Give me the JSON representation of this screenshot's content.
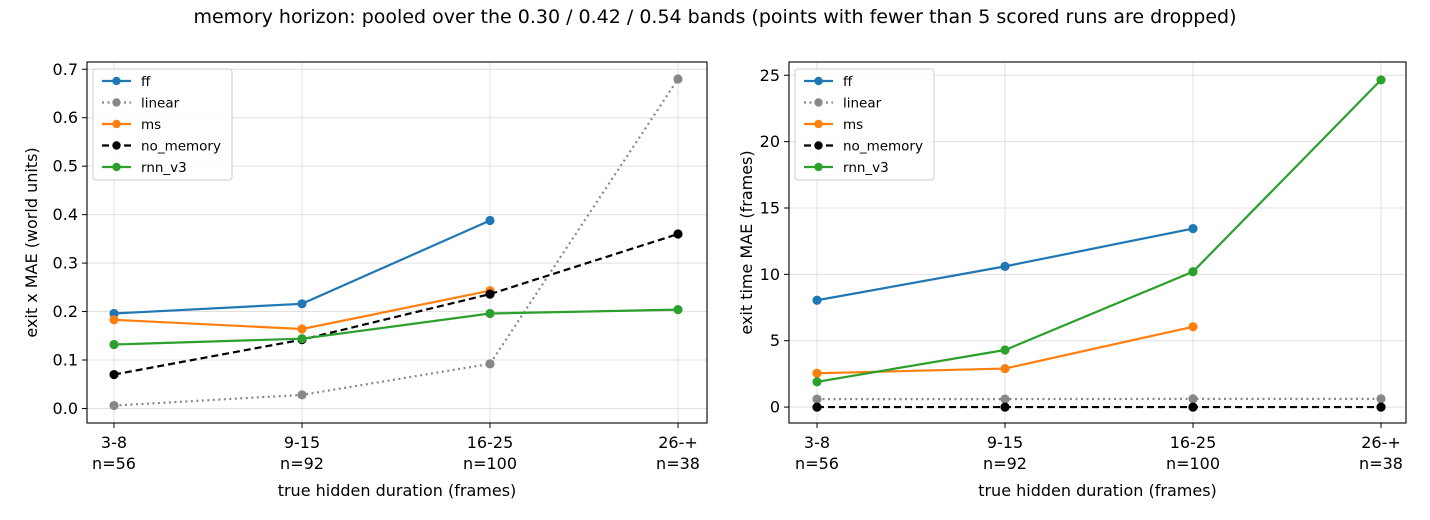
{
  "suptitle": "memory horizon: pooled over the 0.30 / 0.42 / 0.54 bands (points with fewer than 5 scored runs are dropped)",
  "chart_data": [
    {
      "type": "line",
      "xlabel": "true hidden duration (frames)",
      "ylabel": "exit x MAE (world units)",
      "categories": [
        "3-8\nn=56",
        "9-15\nn=92",
        "16-25\nn=100",
        "26-+\nn=38"
      ],
      "ylim": [
        -0.03,
        0.715
      ],
      "yticks": [
        0.0,
        0.1,
        0.2,
        0.3,
        0.4,
        0.5,
        0.6,
        0.7
      ],
      "ytick_labels": [
        "0.0",
        "0.1",
        "0.2",
        "0.3",
        "0.4",
        "0.5",
        "0.6",
        "0.7"
      ],
      "grid": true,
      "legend_position": "top-left",
      "series": [
        {
          "name": "ff",
          "color": "#1f77b4",
          "dash": "solid",
          "values": [
            0.196,
            0.216,
            0.388,
            null
          ]
        },
        {
          "name": "linear",
          "color": "#888888",
          "dash": "dotted",
          "values": [
            0.006,
            0.028,
            0.092,
            0.68
          ]
        },
        {
          "name": "ms",
          "color": "#ff7f0e",
          "dash": "solid",
          "values": [
            0.183,
            0.164,
            0.243,
            null
          ]
        },
        {
          "name": "no_memory",
          "color": "#000000",
          "dash": "dashed",
          "values": [
            0.07,
            0.142,
            0.236,
            0.36
          ]
        },
        {
          "name": "rnn_v3",
          "color": "#2ca02c",
          "dash": "solid",
          "values": [
            0.132,
            0.144,
            0.196,
            0.204
          ]
        }
      ]
    },
    {
      "type": "line",
      "xlabel": "true hidden duration (frames)",
      "ylabel": "exit time MAE (frames)",
      "categories": [
        "3-8\nn=56",
        "9-15\nn=92",
        "16-25\nn=100",
        "26-+\nn=38"
      ],
      "ylim": [
        -1.2,
        26.0
      ],
      "yticks": [
        0,
        5,
        10,
        15,
        20,
        25
      ],
      "ytick_labels": [
        "0",
        "5",
        "10",
        "15",
        "20",
        "25"
      ],
      "grid": true,
      "legend_position": "top-left",
      "series": [
        {
          "name": "ff",
          "color": "#1f77b4",
          "dash": "solid",
          "values": [
            8.05,
            10.6,
            13.45,
            null
          ]
        },
        {
          "name": "linear",
          "color": "#888888",
          "dash": "dotted",
          "values": [
            0.6,
            0.6,
            0.62,
            0.62
          ]
        },
        {
          "name": "ms",
          "color": "#ff7f0e",
          "dash": "solid",
          "values": [
            2.55,
            2.9,
            6.05,
            null
          ]
        },
        {
          "name": "no_memory",
          "color": "#000000",
          "dash": "dashed",
          "values": [
            0.0,
            0.0,
            0.0,
            0.0
          ]
        },
        {
          "name": "rnn_v3",
          "color": "#2ca02c",
          "dash": "solid",
          "values": [
            1.9,
            4.3,
            10.2,
            24.65
          ]
        }
      ]
    }
  ]
}
